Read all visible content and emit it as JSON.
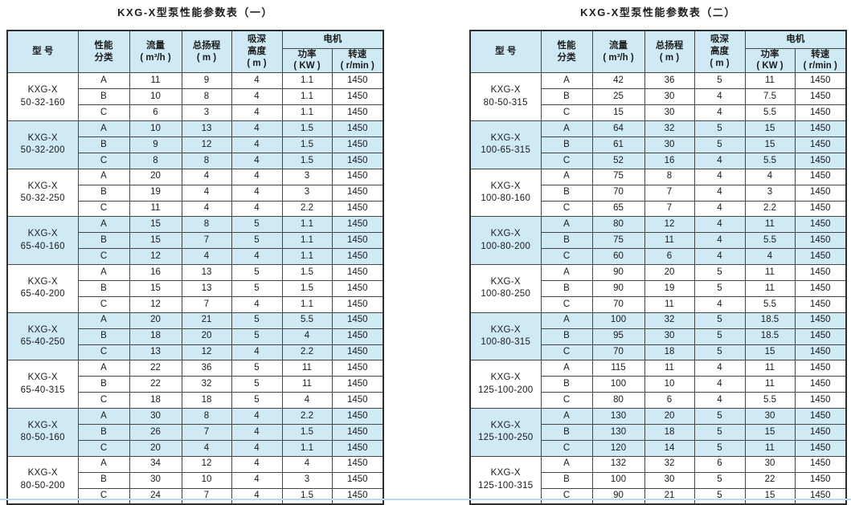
{
  "colors": {
    "stripe": "#cfe9f5",
    "border": "#464646",
    "outer_border": "#2e2e2e",
    "bottom_rule": "#b5ddee",
    "text": "#1b1b1b"
  },
  "tables": [
    {
      "title": "KXG-X型泵性能参数表（一）",
      "columns": {
        "model": "型  号",
        "grade": "性能\n分类",
        "flow": "流量\n( m³/h )",
        "head": "总扬程\n( m )",
        "suction": "吸深\n高度\n( m )",
        "motor": "电机",
        "power": "功率\n( KW )",
        "speed": "转速\n( r/min )"
      },
      "groups": [
        {
          "model": "KXG-X\n50-32-160",
          "rows": [
            [
              "A",
              "11",
              "9",
              "4",
              "1.1",
              "1450"
            ],
            [
              "B",
              "10",
              "8",
              "4",
              "1.1",
              "1450"
            ],
            [
              "C",
              "6",
              "3",
              "4",
              "1.1",
              "1450"
            ]
          ]
        },
        {
          "model": "KXG-X\n50-32-200",
          "rows": [
            [
              "A",
              "10",
              "13",
              "4",
              "1.5",
              "1450"
            ],
            [
              "B",
              "9",
              "12",
              "4",
              "1.5",
              "1450"
            ],
            [
              "C",
              "8",
              "8",
              "4",
              "1.5",
              "1450"
            ]
          ]
        },
        {
          "model": "KXG-X\n50-32-250",
          "rows": [
            [
              "A",
              "20",
              "4",
              "4",
              "3",
              "1450"
            ],
            [
              "B",
              "19",
              "4",
              "4",
              "3",
              "1450"
            ],
            [
              "C",
              "11",
              "4",
              "4",
              "2.2",
              "1450"
            ]
          ]
        },
        {
          "model": "KXG-X\n65-40-160",
          "rows": [
            [
              "A",
              "15",
              "8",
              "5",
              "1.1",
              "1450"
            ],
            [
              "B",
              "15",
              "7",
              "5",
              "1.1",
              "1450"
            ],
            [
              "C",
              "12",
              "4",
              "4",
              "1.1",
              "1450"
            ]
          ]
        },
        {
          "model": "KXG-X\n65-40-200",
          "rows": [
            [
              "A",
              "16",
              "13",
              "5",
              "1.5",
              "1450"
            ],
            [
              "B",
              "15",
              "13",
              "5",
              "1.5",
              "1450"
            ],
            [
              "C",
              "12",
              "7",
              "4",
              "1.1",
              "1450"
            ]
          ]
        },
        {
          "model": "KXG-X\n65-40-250",
          "rows": [
            [
              "A",
              "20",
              "21",
              "5",
              "5.5",
              "1450"
            ],
            [
              "B",
              "18",
              "20",
              "5",
              "4",
              "1450"
            ],
            [
              "C",
              "13",
              "12",
              "4",
              "2.2",
              "1450"
            ]
          ]
        },
        {
          "model": "KXG-X\n65-40-315",
          "rows": [
            [
              "A",
              "22",
              "36",
              "5",
              "11",
              "1450"
            ],
            [
              "B",
              "22",
              "32",
              "5",
              "11",
              "1450"
            ],
            [
              "C",
              "18",
              "18",
              "5",
              "4",
              "1450"
            ]
          ]
        },
        {
          "model": "KXG-X\n80-50-160",
          "rows": [
            [
              "A",
              "30",
              "8",
              "4",
              "2.2",
              "1450"
            ],
            [
              "B",
              "26",
              "7",
              "4",
              "1.5",
              "1450"
            ],
            [
              "C",
              "20",
              "4",
              "4",
              "1.1",
              "1450"
            ]
          ]
        },
        {
          "model": "KXG-X\n80-50-200",
          "rows": [
            [
              "A",
              "34",
              "12",
              "4",
              "4",
              "1450"
            ],
            [
              "B",
              "30",
              "10",
              "4",
              "3",
              "1450"
            ],
            [
              "C",
              "24",
              "7",
              "4",
              "1.5",
              "1450"
            ]
          ]
        }
      ]
    },
    {
      "title": "KXG-X型泵性能参数表（二）",
      "columns": {
        "model": "型  号",
        "grade": "性能\n分类",
        "flow": "流量\n( m³/h )",
        "head": "总扬程\n( m )",
        "suction": "吸深\n高度\n( m )",
        "motor": "电机",
        "power": "功率\n( KW )",
        "speed": "转速\n( r/min )"
      },
      "groups": [
        {
          "model": "KXG-X\n80-50-315",
          "rows": [
            [
              "A",
              "42",
              "36",
              "5",
              "11",
              "1450"
            ],
            [
              "B",
              "25",
              "30",
              "4",
              "7.5",
              "1450"
            ],
            [
              "C",
              "15",
              "30",
              "4",
              "5.5",
              "1450"
            ]
          ]
        },
        {
          "model": "KXG-X\n100-65-315",
          "rows": [
            [
              "A",
              "64",
              "32",
              "5",
              "15",
              "1450"
            ],
            [
              "B",
              "61",
              "30",
              "5",
              "15",
              "1450"
            ],
            [
              "C",
              "52",
              "16",
              "4",
              "5.5",
              "1450"
            ]
          ]
        },
        {
          "model": "KXG-X\n100-80-160",
          "rows": [
            [
              "A",
              "75",
              "8",
              "4",
              "4",
              "1450"
            ],
            [
              "B",
              "70",
              "7",
              "4",
              "3",
              "1450"
            ],
            [
              "C",
              "65",
              "7",
              "4",
              "2.2",
              "1450"
            ]
          ]
        },
        {
          "model": "KXG-X\n100-80-200",
          "rows": [
            [
              "A",
              "80",
              "12",
              "4",
              "11",
              "1450"
            ],
            [
              "B",
              "75",
              "11",
              "4",
              "5.5",
              "1450"
            ],
            [
              "C",
              "60",
              "6",
              "4",
              "4",
              "1450"
            ]
          ]
        },
        {
          "model": "KXG-X\n100-80-250",
          "rows": [
            [
              "A",
              "90",
              "20",
              "5",
              "11",
              "1450"
            ],
            [
              "B",
              "90",
              "19",
              "5",
              "11",
              "1450"
            ],
            [
              "C",
              "70",
              "11",
              "4",
              "5.5",
              "1450"
            ]
          ]
        },
        {
          "model": "KXG-X\n100-80-315",
          "rows": [
            [
              "A",
              "100",
              "32",
              "5",
              "18.5",
              "1450"
            ],
            [
              "B",
              "95",
              "30",
              "5",
              "18.5",
              "1450"
            ],
            [
              "C",
              "70",
              "18",
              "5",
              "15",
              "1450"
            ]
          ]
        },
        {
          "model": "KXG-X\n125-100-200",
          "rows": [
            [
              "A",
              "115",
              "11",
              "4",
              "11",
              "1450"
            ],
            [
              "B",
              "100",
              "10",
              "4",
              "11",
              "1450"
            ],
            [
              "C",
              "80",
              "6",
              "4",
              "5.5",
              "1450"
            ]
          ]
        },
        {
          "model": "KXG-X\n125-100-250",
          "rows": [
            [
              "A",
              "130",
              "20",
              "5",
              "30",
              "1450"
            ],
            [
              "B",
              "130",
              "18",
              "5",
              "15",
              "1450"
            ],
            [
              "C",
              "120",
              "14",
              "5",
              "11",
              "1450"
            ]
          ]
        },
        {
          "model": "KXG-X\n125-100-315",
          "rows": [
            [
              "A",
              "132",
              "32",
              "6",
              "30",
              "1450"
            ],
            [
              "B",
              "100",
              "30",
              "5",
              "22",
              "1450"
            ],
            [
              "C",
              "90",
              "21",
              "5",
              "15",
              "1450"
            ]
          ]
        }
      ]
    }
  ]
}
